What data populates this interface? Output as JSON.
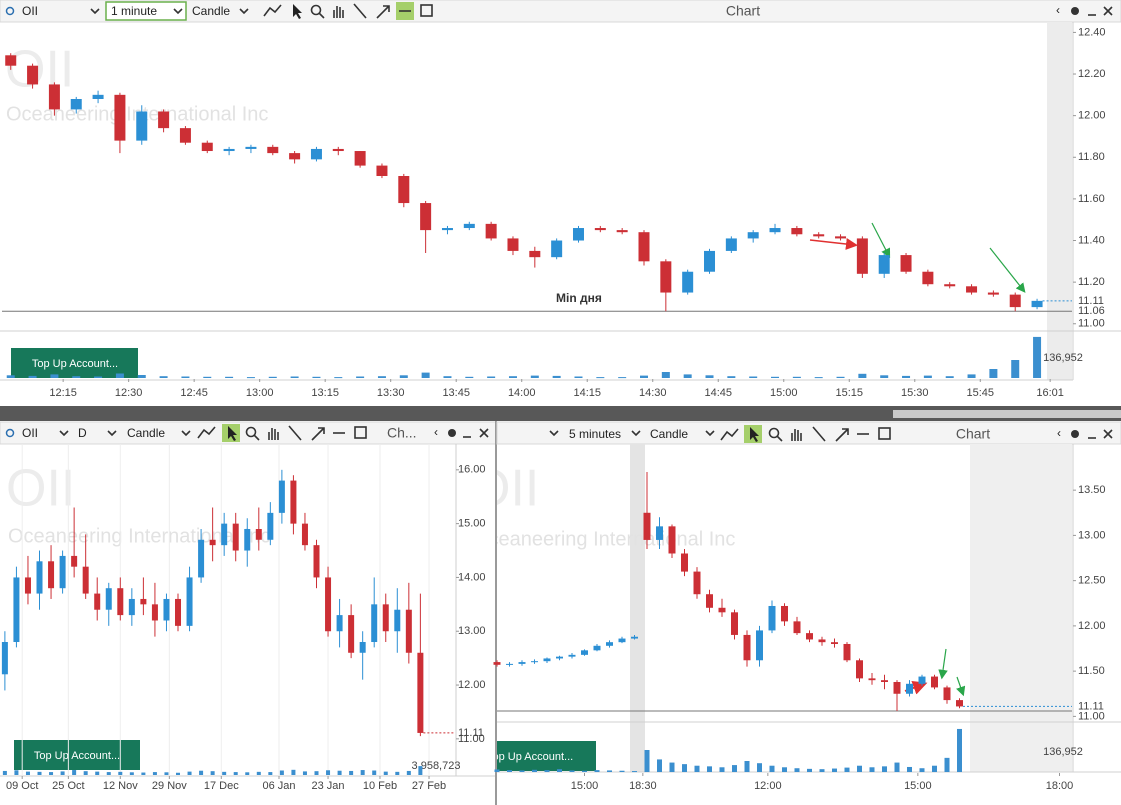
{
  "windows": [
    {
      "toolbar": {
        "symbol": "OII",
        "interval": "1 minute",
        "chart_style": "Candle",
        "title": "Chart"
      },
      "watermark": {
        "symbol": "OII",
        "name": "Oceaneering International Inc"
      },
      "button": "Top Up Account...",
      "chart": {
        "type": "candlestick",
        "up_color": "#2b8fd4",
        "down_color": "#cc2f35",
        "last_color": "#2b8fd4",
        "grid": false,
        "annotation": "Min дня",
        "x": [
          723,
          728,
          733,
          738,
          743,
          748,
          753,
          758,
          763,
          768,
          773,
          778,
          783,
          788,
          793,
          798,
          803,
          808,
          813,
          818,
          823,
          828,
          833,
          838,
          843,
          848,
          853,
          858,
          863,
          868,
          873,
          878,
          883,
          888,
          893,
          898,
          903,
          908,
          913,
          918,
          923,
          928,
          933,
          938,
          943,
          948,
          953,
          958
        ],
        "open": [
          12.29,
          12.24,
          12.15,
          12.03,
          12.08,
          12.1,
          11.88,
          12.02,
          11.94,
          11.87,
          11.83,
          11.84,
          11.85,
          11.82,
          11.79,
          11.84,
          11.83,
          11.76,
          11.71,
          11.58,
          11.45,
          11.46,
          11.48,
          11.41,
          11.35,
          11.32,
          11.4,
          11.46,
          11.45,
          11.44,
          11.3,
          11.15,
          11.25,
          11.35,
          11.41,
          11.44,
          11.46,
          11.43,
          11.42,
          11.41,
          11.24,
          11.33,
          11.25,
          11.19,
          11.18,
          11.15,
          11.14,
          11.08
        ],
        "high": [
          12.3,
          12.25,
          12.16,
          12.09,
          12.12,
          12.11,
          12.05,
          12.03,
          11.95,
          11.88,
          11.85,
          11.86,
          11.86,
          11.83,
          11.85,
          11.85,
          11.83,
          11.77,
          11.72,
          11.59,
          11.47,
          11.49,
          11.49,
          11.42,
          11.37,
          11.41,
          11.47,
          11.47,
          11.46,
          11.45,
          11.31,
          11.26,
          11.36,
          11.42,
          11.45,
          11.48,
          11.47,
          11.44,
          11.43,
          11.42,
          11.34,
          11.34,
          11.26,
          11.2,
          11.19,
          11.16,
          11.15,
          11.12
        ],
        "low": [
          12.22,
          12.13,
          12.0,
          12.01,
          12.06,
          11.82,
          11.86,
          11.92,
          11.86,
          11.82,
          11.81,
          11.82,
          11.81,
          11.77,
          11.78,
          11.81,
          11.75,
          11.7,
          11.56,
          11.34,
          11.43,
          11.45,
          11.4,
          11.33,
          11.27,
          11.31,
          11.39,
          11.44,
          11.43,
          11.28,
          11.06,
          11.14,
          11.24,
          11.34,
          11.39,
          11.43,
          11.42,
          11.41,
          11.4,
          11.22,
          11.22,
          11.24,
          11.18,
          11.17,
          11.14,
          11.13,
          11.06,
          11.07
        ],
        "close": [
          12.24,
          12.15,
          12.03,
          12.08,
          12.1,
          11.88,
          12.02,
          11.94,
          11.87,
          11.83,
          11.84,
          11.85,
          11.82,
          11.79,
          11.84,
          11.83,
          11.76,
          11.71,
          11.58,
          11.45,
          11.46,
          11.48,
          11.41,
          11.35,
          11.32,
          11.4,
          11.46,
          11.45,
          11.44,
          11.3,
          11.15,
          11.25,
          11.35,
          11.41,
          11.44,
          11.46,
          11.43,
          11.42,
          11.41,
          11.24,
          11.33,
          11.25,
          11.19,
          11.18,
          11.15,
          11.14,
          11.08,
          11.11
        ],
        "volume": [
          9000,
          7000,
          12000,
          6000,
          5000,
          15000,
          10000,
          6000,
          5000,
          4000,
          4000,
          3000,
          4000,
          5000,
          4000,
          3000,
          5000,
          6000,
          9000,
          18000,
          6000,
          4000,
          5000,
          6000,
          8000,
          7000,
          5000,
          3000,
          3000,
          8000,
          20000,
          12000,
          9000,
          6000,
          5000,
          4000,
          4000,
          3000,
          4000,
          14000,
          9000,
          7000,
          8000,
          6000,
          12000,
          30000,
          60000,
          136952
        ],
        "xlim": [
          721,
          966
        ],
        "xticks": [
          {
            "value": 735,
            "label": "12:15"
          },
          {
            "value": 750,
            "label": "12:30"
          },
          {
            "value": 765,
            "label": "12:45"
          },
          {
            "value": 780,
            "label": "13:00"
          },
          {
            "value": 795,
            "label": "13:15"
          },
          {
            "value": 810,
            "label": "13:30"
          },
          {
            "value": 825,
            "label": "13:45"
          },
          {
            "value": 840,
            "label": "14:00"
          },
          {
            "value": 855,
            "label": "14:15"
          },
          {
            "value": 870,
            "label": "14:30"
          },
          {
            "value": 885,
            "label": "14:45"
          },
          {
            "value": 900,
            "label": "15:00"
          },
          {
            "value": 915,
            "label": "15:15"
          },
          {
            "value": 930,
            "label": "15:30"
          },
          {
            "value": 945,
            "label": "15:45"
          },
          {
            "value": 961,
            "label": "16:01"
          }
        ],
        "ylim": [
          10.97,
          12.45
        ],
        "yticks": [
          {
            "value": 11.0,
            "label": "11.00"
          },
          {
            "value": 11.2,
            "label": "11.20"
          },
          {
            "value": 11.4,
            "label": "11.40"
          },
          {
            "value": 11.6,
            "label": "11.60"
          },
          {
            "value": 11.8,
            "label": "11.80"
          },
          {
            "value": 12.0,
            "label": "12.00"
          },
          {
            "value": 12.2,
            "label": "12.20"
          },
          {
            "value": 12.4,
            "label": "12.40"
          }
        ],
        "volume_ylim": [
          0,
          140000
        ],
        "volume_ticks": [
          {
            "value": 136952,
            "label": "136,952"
          }
        ],
        "last_price": 11.11,
        "min_price": 11.06
      }
    },
    {
      "toolbar": {
        "symbol": "OII",
        "interval": "D",
        "chart_style": "Candle",
        "title": "Ch..."
      },
      "watermark": {
        "symbol": "OII",
        "name": "Oceaneering International Inc"
      },
      "button": "Top Up Account...",
      "chart": {
        "type": "candlestick",
        "up_color": "#2b8fd4",
        "down_color": "#cc2f35",
        "last_color": "#cc2f35",
        "grid": true,
        "x": [
          2,
          6,
          10,
          14,
          18,
          22,
          26,
          30,
          34,
          38,
          42,
          46,
          50,
          54,
          58,
          62,
          66,
          70,
          74,
          78,
          82,
          86,
          90,
          94,
          98,
          102,
          106,
          110,
          114,
          118,
          122,
          126,
          130,
          134,
          138,
          142,
          146
        ],
        "open": [
          12.2,
          12.8,
          14.0,
          13.7,
          14.3,
          13.8,
          14.4,
          14.2,
          13.7,
          13.4,
          13.8,
          13.3,
          13.6,
          13.5,
          13.2,
          13.6,
          13.1,
          14.0,
          14.7,
          14.6,
          15.0,
          14.5,
          14.9,
          14.7,
          15.2,
          15.8,
          15.0,
          14.6,
          14.0,
          13.0,
          13.3,
          12.6,
          12.8,
          13.5,
          13.0,
          13.4,
          12.6
        ],
        "high": [
          13.0,
          14.2,
          14.4,
          14.5,
          14.6,
          14.5,
          15.3,
          14.8,
          14.0,
          13.9,
          14.0,
          13.8,
          14.0,
          13.9,
          13.7,
          13.7,
          14.2,
          14.9,
          15.3,
          15.2,
          15.2,
          15.1,
          15.3,
          15.4,
          16.0,
          15.9,
          15.2,
          14.7,
          14.2,
          13.6,
          13.5,
          13.0,
          14.0,
          13.7,
          13.8,
          13.9,
          13.7
        ],
        "low": [
          11.9,
          12.7,
          13.5,
          13.4,
          13.6,
          13.7,
          14.0,
          13.6,
          13.2,
          13.1,
          13.2,
          13.1,
          13.3,
          12.9,
          13.0,
          13.0,
          13.0,
          13.9,
          14.3,
          14.4,
          14.3,
          14.2,
          14.5,
          14.6,
          15.0,
          14.8,
          14.5,
          13.8,
          12.9,
          12.7,
          12.5,
          12.1,
          12.7,
          12.8,
          12.6,
          12.4,
          11.05
        ],
        "close": [
          12.8,
          14.0,
          13.7,
          14.3,
          13.8,
          14.4,
          14.2,
          13.7,
          13.4,
          13.8,
          13.3,
          13.6,
          13.5,
          13.2,
          13.6,
          13.1,
          14.0,
          14.7,
          14.6,
          15.0,
          14.5,
          14.9,
          14.7,
          15.2,
          15.8,
          15.0,
          14.6,
          14.0,
          13.0,
          13.3,
          12.6,
          12.8,
          13.5,
          13.0,
          13.4,
          12.6,
          11.11
        ],
        "volume": [
          1800000,
          2100000,
          1500000,
          1400000,
          1300000,
          1600000,
          2200000,
          1700000,
          1500000,
          1300000,
          1400000,
          1200000,
          1100000,
          1300000,
          1200000,
          1000000,
          1500000,
          1900000,
          1700000,
          1400000,
          1300000,
          1200000,
          1400000,
          1300000,
          2000000,
          2300000,
          1600000,
          1700000,
          2100000,
          1900000,
          1800000,
          2200000,
          2000000,
          1500000,
          1400000,
          1800000,
          3958723
        ],
        "xlim": [
          1,
          158
        ],
        "xticks": [
          {
            "value": 8,
            "label": "09 Oct"
          },
          {
            "value": 24,
            "label": "25 Oct"
          },
          {
            "value": 42,
            "label": "12 Nov"
          },
          {
            "value": 59,
            "label": "29 Nov"
          },
          {
            "value": 77,
            "label": "17 Dec"
          },
          {
            "value": 97,
            "label": "06 Jan"
          },
          {
            "value": 114,
            "label": "23 Jan"
          },
          {
            "value": 132,
            "label": "10 Feb"
          },
          {
            "value": 149,
            "label": "27 Feb"
          }
        ],
        "ylim": [
          10.83,
          16.48
        ],
        "yticks": [
          {
            "value": 11,
            "label": "11.00"
          },
          {
            "value": 12,
            "label": "12.00"
          },
          {
            "value": 13,
            "label": "13.00"
          },
          {
            "value": 14,
            "label": "14.00"
          },
          {
            "value": 15,
            "label": "15.00"
          },
          {
            "value": 16,
            "label": "16.00"
          }
        ],
        "volume_ylim": [
          0,
          4000000
        ],
        "volume_ticks": [
          {
            "value": 3958723,
            "label": "3,958,723"
          }
        ],
        "last_price": 11.11
      }
    },
    {
      "toolbar": {
        "interval": "5 minutes",
        "chart_style": "Candle",
        "title": "Chart"
      },
      "watermark": {
        "symbol": "OII",
        "name": "Oceaneering International Inc"
      },
      "button": "Top Up Account...",
      "chart": {
        "type": "candlestick",
        "up_color": "#2b8fd4",
        "down_color": "#cc2f35",
        "last_color": "#2b8fd4",
        "grid": false,
        "x": [
          0,
          3,
          6,
          9,
          12,
          15,
          18,
          21,
          24,
          27,
          30,
          33,
          36,
          39,
          42,
          45,
          48,
          51,
          54,
          57,
          60,
          63,
          66,
          69,
          72,
          75,
          78,
          81,
          84,
          87,
          90,
          93,
          96,
          99,
          102,
          105,
          108,
          111
        ],
        "open": [
          11.6,
          11.57,
          11.58,
          11.6,
          11.61,
          11.64,
          11.66,
          11.68,
          11.73,
          11.78,
          11.82,
          11.86,
          13.25,
          12.95,
          13.1,
          12.8,
          12.6,
          12.35,
          12.2,
          12.15,
          11.9,
          11.62,
          11.95,
          12.22,
          12.05,
          11.92,
          11.85,
          11.82,
          11.8,
          11.62,
          11.42,
          11.4,
          11.38,
          11.25,
          11.36,
          11.44,
          11.32,
          11.18
        ],
        "high": [
          11.62,
          11.6,
          11.62,
          11.63,
          11.65,
          11.67,
          11.7,
          11.74,
          11.8,
          11.84,
          11.88,
          11.9,
          13.7,
          13.2,
          13.12,
          12.85,
          12.65,
          12.4,
          12.3,
          12.18,
          11.95,
          12.0,
          12.28,
          12.25,
          12.1,
          11.95,
          11.88,
          11.86,
          11.82,
          11.64,
          11.48,
          11.46,
          11.4,
          11.4,
          11.46,
          11.46,
          11.34,
          11.2
        ],
        "low": [
          11.55,
          11.55,
          11.56,
          11.58,
          11.59,
          11.62,
          11.64,
          11.67,
          11.72,
          11.76,
          11.81,
          11.85,
          12.85,
          12.85,
          12.75,
          12.55,
          12.3,
          12.15,
          12.1,
          11.85,
          11.55,
          11.55,
          11.92,
          12.0,
          11.9,
          11.82,
          11.78,
          11.76,
          11.6,
          11.38,
          11.35,
          11.3,
          11.06,
          11.22,
          11.34,
          11.3,
          11.14,
          11.09
        ],
        "close": [
          11.57,
          11.58,
          11.6,
          11.61,
          11.64,
          11.66,
          11.68,
          11.73,
          11.78,
          11.82,
          11.86,
          11.88,
          12.95,
          13.1,
          12.8,
          12.6,
          12.35,
          12.2,
          12.15,
          11.9,
          11.62,
          11.95,
          12.22,
          12.05,
          11.92,
          11.85,
          11.82,
          11.8,
          11.62,
          11.42,
          11.4,
          11.38,
          11.25,
          11.36,
          11.44,
          11.32,
          11.18,
          11.11
        ],
        "volume": [
          8000,
          6000,
          5000,
          7000,
          6000,
          9000,
          5000,
          4000,
          6000,
          5000,
          4000,
          3000,
          70000,
          40000,
          30000,
          25000,
          20000,
          18000,
          15000,
          22000,
          35000,
          28000,
          20000,
          15000,
          12000,
          10000,
          9000,
          11000,
          14000,
          20000,
          15000,
          18000,
          30000,
          16000,
          12000,
          20000,
          45000,
          136952
        ],
        "xlim": [
          0,
          138
        ],
        "xticks": [
          {
            "value": 21,
            "label": "15:00"
          },
          {
            "value": 35,
            "label": "18:30"
          },
          {
            "value": 65,
            "label": "12:00"
          },
          {
            "value": 101,
            "label": "15:00"
          },
          {
            "value": 135,
            "label": "18:00"
          }
        ],
        "ylim": [
          10.96,
          14.01
        ],
        "yticks": [
          {
            "value": 11,
            "label": "11.00"
          },
          {
            "value": 11.5,
            "label": "11.50"
          },
          {
            "value": 12,
            "label": "12.00"
          },
          {
            "value": 12.5,
            "label": "12.50"
          },
          {
            "value": 13,
            "label": "13.00"
          },
          {
            "value": 13.5,
            "label": "13.50"
          }
        ],
        "volume_ylim": [
          0,
          140000
        ],
        "volume_ticks": [
          {
            "value": 136952,
            "label": "136,952"
          }
        ],
        "last_price": 11.11,
        "min_price": 11.06
      }
    }
  ]
}
